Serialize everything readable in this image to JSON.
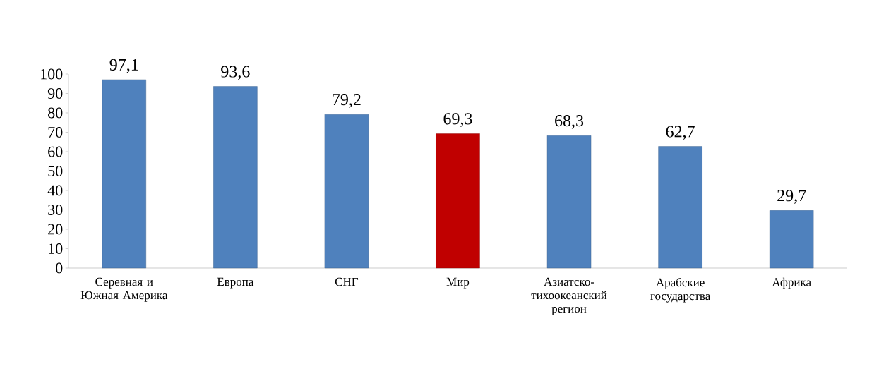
{
  "chart_data": {
    "type": "bar",
    "categories": [
      "Серевная и Южная Америка",
      "Европа",
      "СНГ",
      "Мир",
      "Азиатско-тихоокеанский регион",
      "Арабские государства",
      "Африка"
    ],
    "values": [
      97.1,
      93.6,
      79.2,
      69.3,
      68.3,
      62.7,
      29.7
    ],
    "colors": [
      "#4f81bd",
      "#4f81bd",
      "#4f81bd",
      "#c00000",
      "#4f81bd",
      "#4f81bd",
      "#4f81bd"
    ],
    "value_labels": [
      "97,1",
      "93,6",
      "79,2",
      "69,3",
      "68,3",
      "62,7",
      "29,7"
    ],
    "ylim": [
      0,
      100
    ],
    "yticks": [
      0,
      10,
      20,
      30,
      40,
      50,
      60,
      70,
      80,
      90,
      100
    ],
    "grid": false
  }
}
